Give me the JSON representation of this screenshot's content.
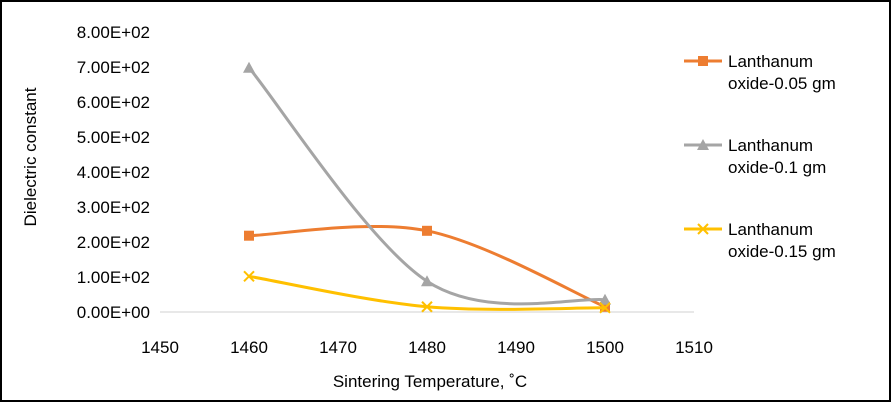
{
  "chart_data": {
    "type": "line",
    "xlabel": "Sintering Temperature, ˚C",
    "ylabel": "Dielectric constant",
    "xlim": [
      1450,
      1510
    ],
    "ylim": [
      0,
      800
    ],
    "x_ticks": [
      "1450",
      "1460",
      "1470",
      "1480",
      "1490",
      "1500",
      "1510"
    ],
    "y_ticks": [
      "0.00E+00",
      "1.00E+02",
      "2.00E+02",
      "3.00E+02",
      "4.00E+02",
      "5.00E+02",
      "6.00E+02",
      "7.00E+02",
      "8.00E+02"
    ],
    "grid": false,
    "smooth": true,
    "legend_position": "right",
    "series": [
      {
        "name": "Lanthanum oxide-0.05 gm",
        "legend_lines": [
          "Lanthanum",
          "oxide-0.05 gm"
        ],
        "color": "#ED7D31",
        "marker": "square",
        "x": [
          1460,
          1480,
          1500
        ],
        "values": [
          218,
          232,
          15
        ]
      },
      {
        "name": "Lanthanum oxide-0.1 gm",
        "legend_lines": [
          "Lanthanum",
          "oxide-0.1 gm"
        ],
        "color": "#A5A5A5",
        "marker": "triangle",
        "x": [
          1460,
          1480,
          1500
        ],
        "values": [
          698,
          88,
          35
        ]
      },
      {
        "name": "Lanthanum oxide-0.15 gm",
        "legend_lines": [
          "Lanthanum",
          "oxide-0.15 gm"
        ],
        "color": "#FFC000",
        "marker": "x",
        "x": [
          1460,
          1480,
          1500
        ],
        "values": [
          102,
          15,
          12
        ]
      }
    ]
  }
}
